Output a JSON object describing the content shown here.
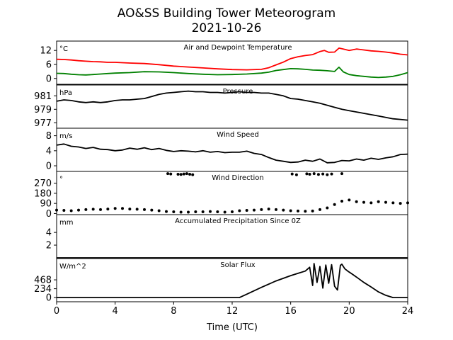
{
  "figure": {
    "title": "AO&SS Building Tower Meteorogram",
    "subtitle": "2021-10-26",
    "xlabel": "Time (UTC)"
  },
  "chart_data": [
    {
      "type": "line",
      "title": "Air and Dewpoint Temperature",
      "unit": "°C",
      "xlim": [
        0,
        24
      ],
      "ylim": [
        -2.5,
        16
      ],
      "yticks": [
        "0",
        "6",
        "12"
      ],
      "series": [
        {
          "color": "#ff0000",
          "x": [
            0,
            0.5,
            1,
            1.5,
            2,
            2.5,
            3,
            3.5,
            4,
            5,
            6,
            7,
            8,
            9,
            10,
            11,
            12,
            13,
            14,
            14.5,
            15,
            15.5,
            16,
            16.5,
            17,
            17.5,
            18,
            18.3,
            18.6,
            19,
            19.3,
            19.6,
            20,
            20.5,
            21,
            21.5,
            22,
            22.5,
            23,
            23.5,
            24
          ],
          "y": [
            8.2,
            8.1,
            7.9,
            7.6,
            7.4,
            7.2,
            7.1,
            6.9,
            6.9,
            6.6,
            6.4,
            5.9,
            5.3,
            4.9,
            4.5,
            4.1,
            3.8,
            3.7,
            3.9,
            4.6,
            5.8,
            7.0,
            8.5,
            9.3,
            9.8,
            10.2,
            11.5,
            12.0,
            11.2,
            11.3,
            13.0,
            12.6,
            12.0,
            12.6,
            12.2,
            11.8,
            11.6,
            11.3,
            10.9,
            10.4,
            10.1
          ]
        },
        {
          "color": "#008000",
          "x": [
            0,
            0.5,
            1,
            1.5,
            2,
            2.5,
            3,
            3.5,
            4,
            5,
            6,
            7,
            8,
            9,
            10,
            11,
            12,
            13,
            14,
            14.5,
            15,
            15.5,
            16,
            16.5,
            17,
            17.5,
            18,
            18.5,
            19,
            19.3,
            19.6,
            20,
            20.5,
            21,
            21.5,
            22,
            22.5,
            23,
            23.5,
            24
          ],
          "y": [
            2.2,
            2.1,
            1.8,
            1.6,
            1.5,
            1.7,
            1.9,
            2.1,
            2.3,
            2.5,
            2.9,
            2.8,
            2.5,
            2.1,
            1.8,
            1.6,
            1.7,
            1.9,
            2.3,
            2.7,
            3.4,
            3.8,
            4.2,
            4.1,
            3.9,
            3.6,
            3.5,
            3.3,
            3.0,
            4.8,
            2.8,
            1.7,
            1.2,
            0.9,
            0.6,
            0.4,
            0.6,
            0.9,
            1.6,
            2.5
          ]
        }
      ]
    },
    {
      "type": "line",
      "title": "Pressure",
      "unit": "hPa",
      "xlim": [
        0,
        24
      ],
      "ylim": [
        976.2,
        982.6
      ],
      "yticks": [
        "977",
        "979",
        "981"
      ],
      "series": [
        {
          "color": "#000000",
          "x": [
            0,
            0.5,
            1,
            1.5,
            2,
            2.5,
            3,
            3.5,
            4,
            4.5,
            5,
            5.5,
            6,
            6.5,
            7,
            7.5,
            8,
            8.5,
            9,
            9.5,
            10,
            10.5,
            11,
            11.5,
            12,
            12.5,
            13,
            13.5,
            14,
            14.5,
            15,
            15.5,
            16,
            16.5,
            17,
            17.5,
            18,
            18.5,
            19,
            19.5,
            20,
            20.5,
            21,
            21.5,
            22,
            22.5,
            23,
            23.5,
            24
          ],
          "y": [
            980.2,
            980.4,
            980.3,
            980.1,
            980.0,
            980.1,
            980.0,
            980.1,
            980.3,
            980.4,
            980.4,
            980.5,
            980.6,
            980.9,
            981.2,
            981.4,
            981.5,
            981.6,
            981.7,
            981.6,
            981.6,
            981.5,
            981.5,
            981.4,
            981.5,
            981.6,
            981.5,
            981.5,
            981.4,
            981.4,
            981.2,
            981.0,
            980.6,
            980.5,
            980.3,
            980.1,
            979.9,
            979.6,
            979.3,
            979.0,
            978.8,
            978.6,
            978.4,
            978.2,
            978.0,
            977.8,
            977.6,
            977.5,
            977.4
          ]
        }
      ]
    },
    {
      "type": "line",
      "title": "Wind Speed",
      "unit": "m/s",
      "xlim": [
        0,
        24
      ],
      "ylim": [
        -1.5,
        10
      ],
      "yticks": [
        "0",
        "4",
        "8"
      ],
      "series": [
        {
          "color": "#000000",
          "x": [
            0,
            0.5,
            1,
            1.5,
            2,
            2.5,
            3,
            3.5,
            4,
            4.5,
            5,
            5.5,
            6,
            6.5,
            7,
            7.5,
            8,
            8.5,
            9,
            9.5,
            10,
            10.5,
            11,
            11.5,
            12,
            12.5,
            13,
            13.5,
            14,
            14.5,
            15,
            15.5,
            16,
            16.5,
            17,
            17.5,
            18,
            18.5,
            19,
            19.5,
            20,
            20.5,
            21,
            21.5,
            22,
            22.5,
            23,
            23.5,
            24
          ],
          "y": [
            5.5,
            5.8,
            5.2,
            5.0,
            4.6,
            4.9,
            4.4,
            4.3,
            4.0,
            4.2,
            4.7,
            4.4,
            4.8,
            4.3,
            4.6,
            4.1,
            3.8,
            4.0,
            3.9,
            3.7,
            4.0,
            3.6,
            3.8,
            3.5,
            3.6,
            3.6,
            3.9,
            3.3,
            3.0,
            2.2,
            1.5,
            1.2,
            0.9,
            1.0,
            1.5,
            1.2,
            1.8,
            0.8,
            0.9,
            1.4,
            1.3,
            1.8,
            1.5,
            2.0,
            1.7,
            2.1,
            2.4,
            3.0,
            3.1
          ]
        }
      ]
    },
    {
      "type": "scatter",
      "title": "Wind Direction",
      "unit": "°",
      "xlim": [
        0,
        24
      ],
      "ylim": [
        -10,
        375
      ],
      "yticks": [
        "0",
        "90",
        "180",
        "270"
      ],
      "series": [
        {
          "color": "#000000",
          "x": [
            0,
            0.5,
            1,
            1.5,
            2,
            2.5,
            3,
            3.5,
            4,
            4.5,
            5,
            5.5,
            6,
            6.5,
            7,
            7.5,
            8,
            8.5,
            9,
            9.5,
            10,
            10.5,
            11,
            11.5,
            12,
            12.5,
            13,
            13.5,
            14,
            14.5,
            15,
            15.5,
            16,
            16.5,
            17,
            17.5,
            18,
            18.5,
            19,
            19.5,
            20,
            20.5,
            21,
            21.5,
            22,
            22.5,
            23,
            23.5,
            24
          ],
          "y": [
            30,
            28,
            25,
            30,
            35,
            38,
            35,
            40,
            45,
            45,
            40,
            38,
            35,
            30,
            25,
            18,
            15,
            12,
            12,
            15,
            15,
            18,
            15,
            12,
            15,
            25,
            28,
            30,
            35,
            40,
            35,
            30,
            25,
            22,
            20,
            22,
            35,
            50,
            80,
            110,
            120,
            105,
            100,
            95,
            105,
            100,
            95,
            90,
            95
          ]
        },
        {
          "color": "#000000",
          "x": [
            7.6,
            7.8,
            8.3,
            8.5,
            8.7,
            8.9,
            9.1,
            9.3,
            16.1,
            16.4,
            17.1,
            17.3,
            17.6,
            17.9,
            18.2,
            18.5,
            18.8,
            19.5
          ],
          "y": [
            355,
            352,
            350,
            348,
            352,
            355,
            350,
            346,
            352,
            345,
            354,
            350,
            355,
            348,
            352,
            346,
            352,
            355
          ]
        }
      ]
    },
    {
      "type": "line",
      "title": "Accumulated Precipitation Since 0Z",
      "unit": "mm",
      "xlim": [
        0,
        24
      ],
      "ylim": [
        0,
        6.8
      ],
      "yticks": [
        "2",
        "4"
      ],
      "series": [
        {
          "color": "#000000",
          "x": [
            0,
            24
          ],
          "y": [
            0,
            0
          ]
        }
      ]
    },
    {
      "type": "line",
      "title": "Solar Flux",
      "unit": "W/m^2",
      "xlim": [
        0,
        24
      ],
      "ylim": [
        -110,
        1030
      ],
      "yticks": [
        "0",
        "234",
        "468"
      ],
      "series": [
        {
          "color": "#000000",
          "x": [
            0,
            12.5,
            13,
            14,
            15,
            16,
            16.5,
            17,
            17.3,
            17.5,
            17.6,
            17.8,
            18.0,
            18.2,
            18.4,
            18.6,
            18.8,
            19.0,
            19.2,
            19.4,
            19.5,
            19.7,
            19.9,
            20.2,
            20.5,
            21,
            21.5,
            22,
            22.5,
            23,
            24
          ],
          "y": [
            0,
            0,
            90,
            270,
            440,
            580,
            640,
            700,
            800,
            320,
            900,
            400,
            820,
            250,
            860,
            380,
            870,
            300,
            200,
            850,
            880,
            760,
            700,
            620,
            540,
            400,
            280,
            150,
            60,
            0,
            0
          ]
        }
      ]
    }
  ]
}
